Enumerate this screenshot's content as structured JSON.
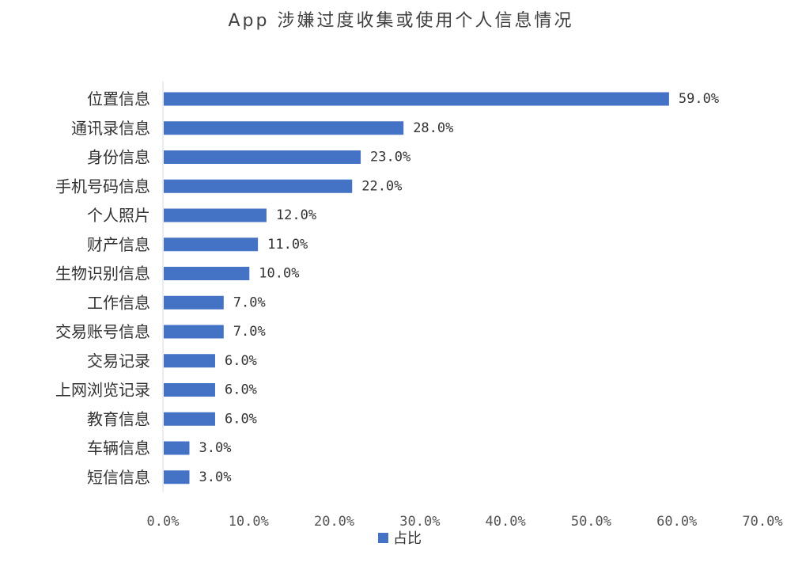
{
  "chart_data": {
    "type": "bar",
    "orientation": "horizontal",
    "title": "App 涉嫌过度收集或使用个人信息情况",
    "categories": [
      "位置信息",
      "通讯录信息",
      "身份信息",
      "手机号码信息",
      "个人照片",
      "财产信息",
      "生物识别信息",
      "工作信息",
      "交易账号信息",
      "交易记录",
      "上网浏览记录",
      "教育信息",
      "车辆信息",
      "短信信息"
    ],
    "series": [
      {
        "name": "占比",
        "values": [
          59.0,
          28.0,
          23.0,
          22.0,
          12.0,
          11.0,
          10.0,
          7.0,
          7.0,
          6.0,
          6.0,
          6.0,
          3.0,
          3.0
        ],
        "labels": [
          "59.0%",
          "28.0%",
          "23.0%",
          "22.0%",
          "12.0%",
          "11.0%",
          "10.0%",
          "7.0%",
          "7.0%",
          "6.0%",
          "6.0%",
          "6.0%",
          "3.0%",
          "3.0%"
        ]
      }
    ],
    "xlim": [
      0,
      70
    ],
    "ticks": [
      0,
      10,
      20,
      30,
      40,
      50,
      60,
      70
    ],
    "tick_labels": [
      "0.0%",
      "10.0%",
      "20.0%",
      "30.0%",
      "40.0%",
      "50.0%",
      "60.0%",
      "70.0%"
    ],
    "grid": false,
    "legend": "bottom",
    "bar_color": "#4472C4"
  }
}
